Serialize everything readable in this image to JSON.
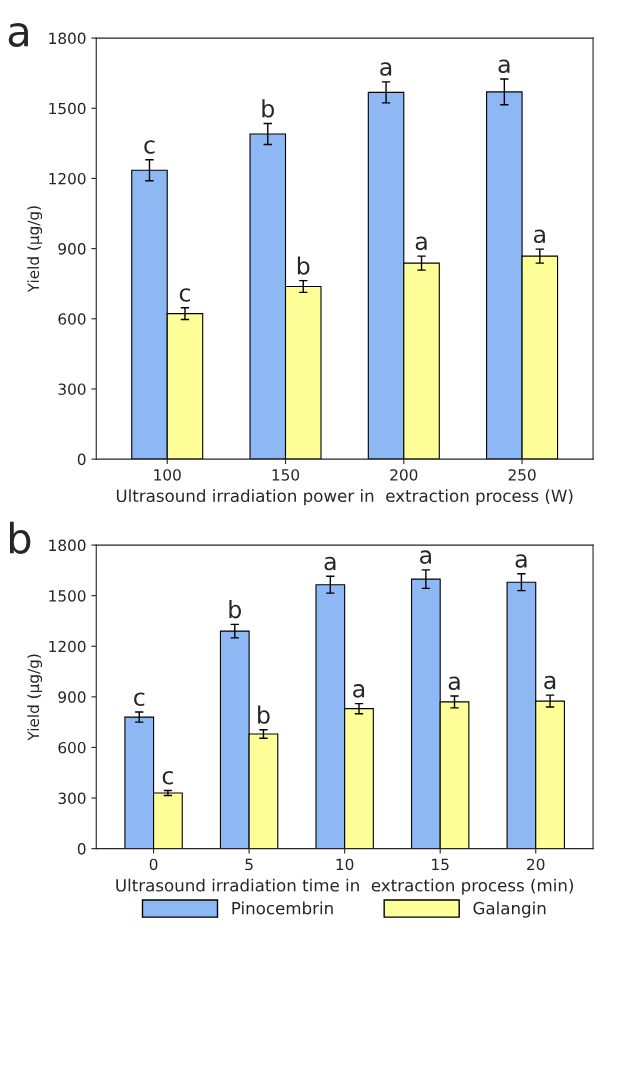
{
  "chart_data": [
    {
      "type": "bar",
      "title": "a",
      "xlabel": "Ultrasound irradiation power in  extraction process (W)",
      "ylabel": "Yield (μg/g)",
      "categories": [
        "100",
        "150",
        "200",
        "250"
      ],
      "ylim": [
        0,
        1800
      ],
      "yticks": [
        0,
        300,
        600,
        900,
        1200,
        1500,
        1800
      ],
      "grid": false,
      "legend": false,
      "series": [
        {
          "color": "#8db8f3",
          "values": [
            1235,
            1390,
            1568,
            1570
          ],
          "errors": [
            45,
            45,
            45,
            55
          ]
        },
        {
          "color": "#ffff99",
          "values": [
            622,
            738,
            838,
            868
          ],
          "errors": [
            25,
            25,
            30,
            30
          ]
        }
      ],
      "annotations": [
        {
          "text": "c",
          "x": "100",
          "y": 1235
        },
        {
          "text": "b",
          "x": "150",
          "y": 1390
        },
        {
          "text": "a",
          "x": "200",
          "y": 1568
        },
        {
          "text": "a",
          "x": "250",
          "y": 1570
        },
        {
          "text": "c",
          "x": "100",
          "y": 622
        },
        {
          "text": "b",
          "x": "150",
          "y": 738
        },
        {
          "text": "a",
          "x": "200",
          "y": 838
        },
        {
          "text": "a",
          "x": "250",
          "y": 868
        }
      ]
    },
    {
      "type": "bar",
      "title": "b",
      "xlabel": "Ultrasound irradiation time in  extraction process (min)",
      "ylabel": "Yield (μg/g)",
      "categories": [
        "0",
        "5",
        "10",
        "15",
        "20"
      ],
      "ylim": [
        0,
        1800
      ],
      "yticks": [
        0,
        300,
        600,
        900,
        1200,
        1500,
        1800
      ],
      "grid": false,
      "legend": "bottom",
      "series": [
        {
          "name": "Pinocembrin",
          "color": "#8db8f3",
          "values": [
            780,
            1290,
            1565,
            1598,
            1580
          ],
          "errors": [
            30,
            40,
            50,
            55,
            50
          ]
        },
        {
          "name": "Galangin",
          "color": "#ffff99",
          "values": [
            330,
            680,
            830,
            870,
            875
          ],
          "errors": [
            15,
            25,
            30,
            35,
            35
          ]
        }
      ],
      "annotations": [
        {
          "text": "c",
          "x": "0",
          "y": 780
        },
        {
          "text": "b",
          "x": "5",
          "y": 1290
        },
        {
          "text": "a",
          "x": "10",
          "y": 1565
        },
        {
          "text": "a",
          "x": "15",
          "y": 1598
        },
        {
          "text": "a",
          "x": "20",
          "y": 1580
        },
        {
          "text": "c",
          "x": "0",
          "y": 330
        },
        {
          "text": "b",
          "x": "5",
          "y": 680
        },
        {
          "text": "a",
          "x": "10",
          "y": 830
        },
        {
          "text": "a",
          "x": "15",
          "y": 870
        },
        {
          "text": "a",
          "x": "20",
          "y": 875
        }
      ]
    }
  ]
}
